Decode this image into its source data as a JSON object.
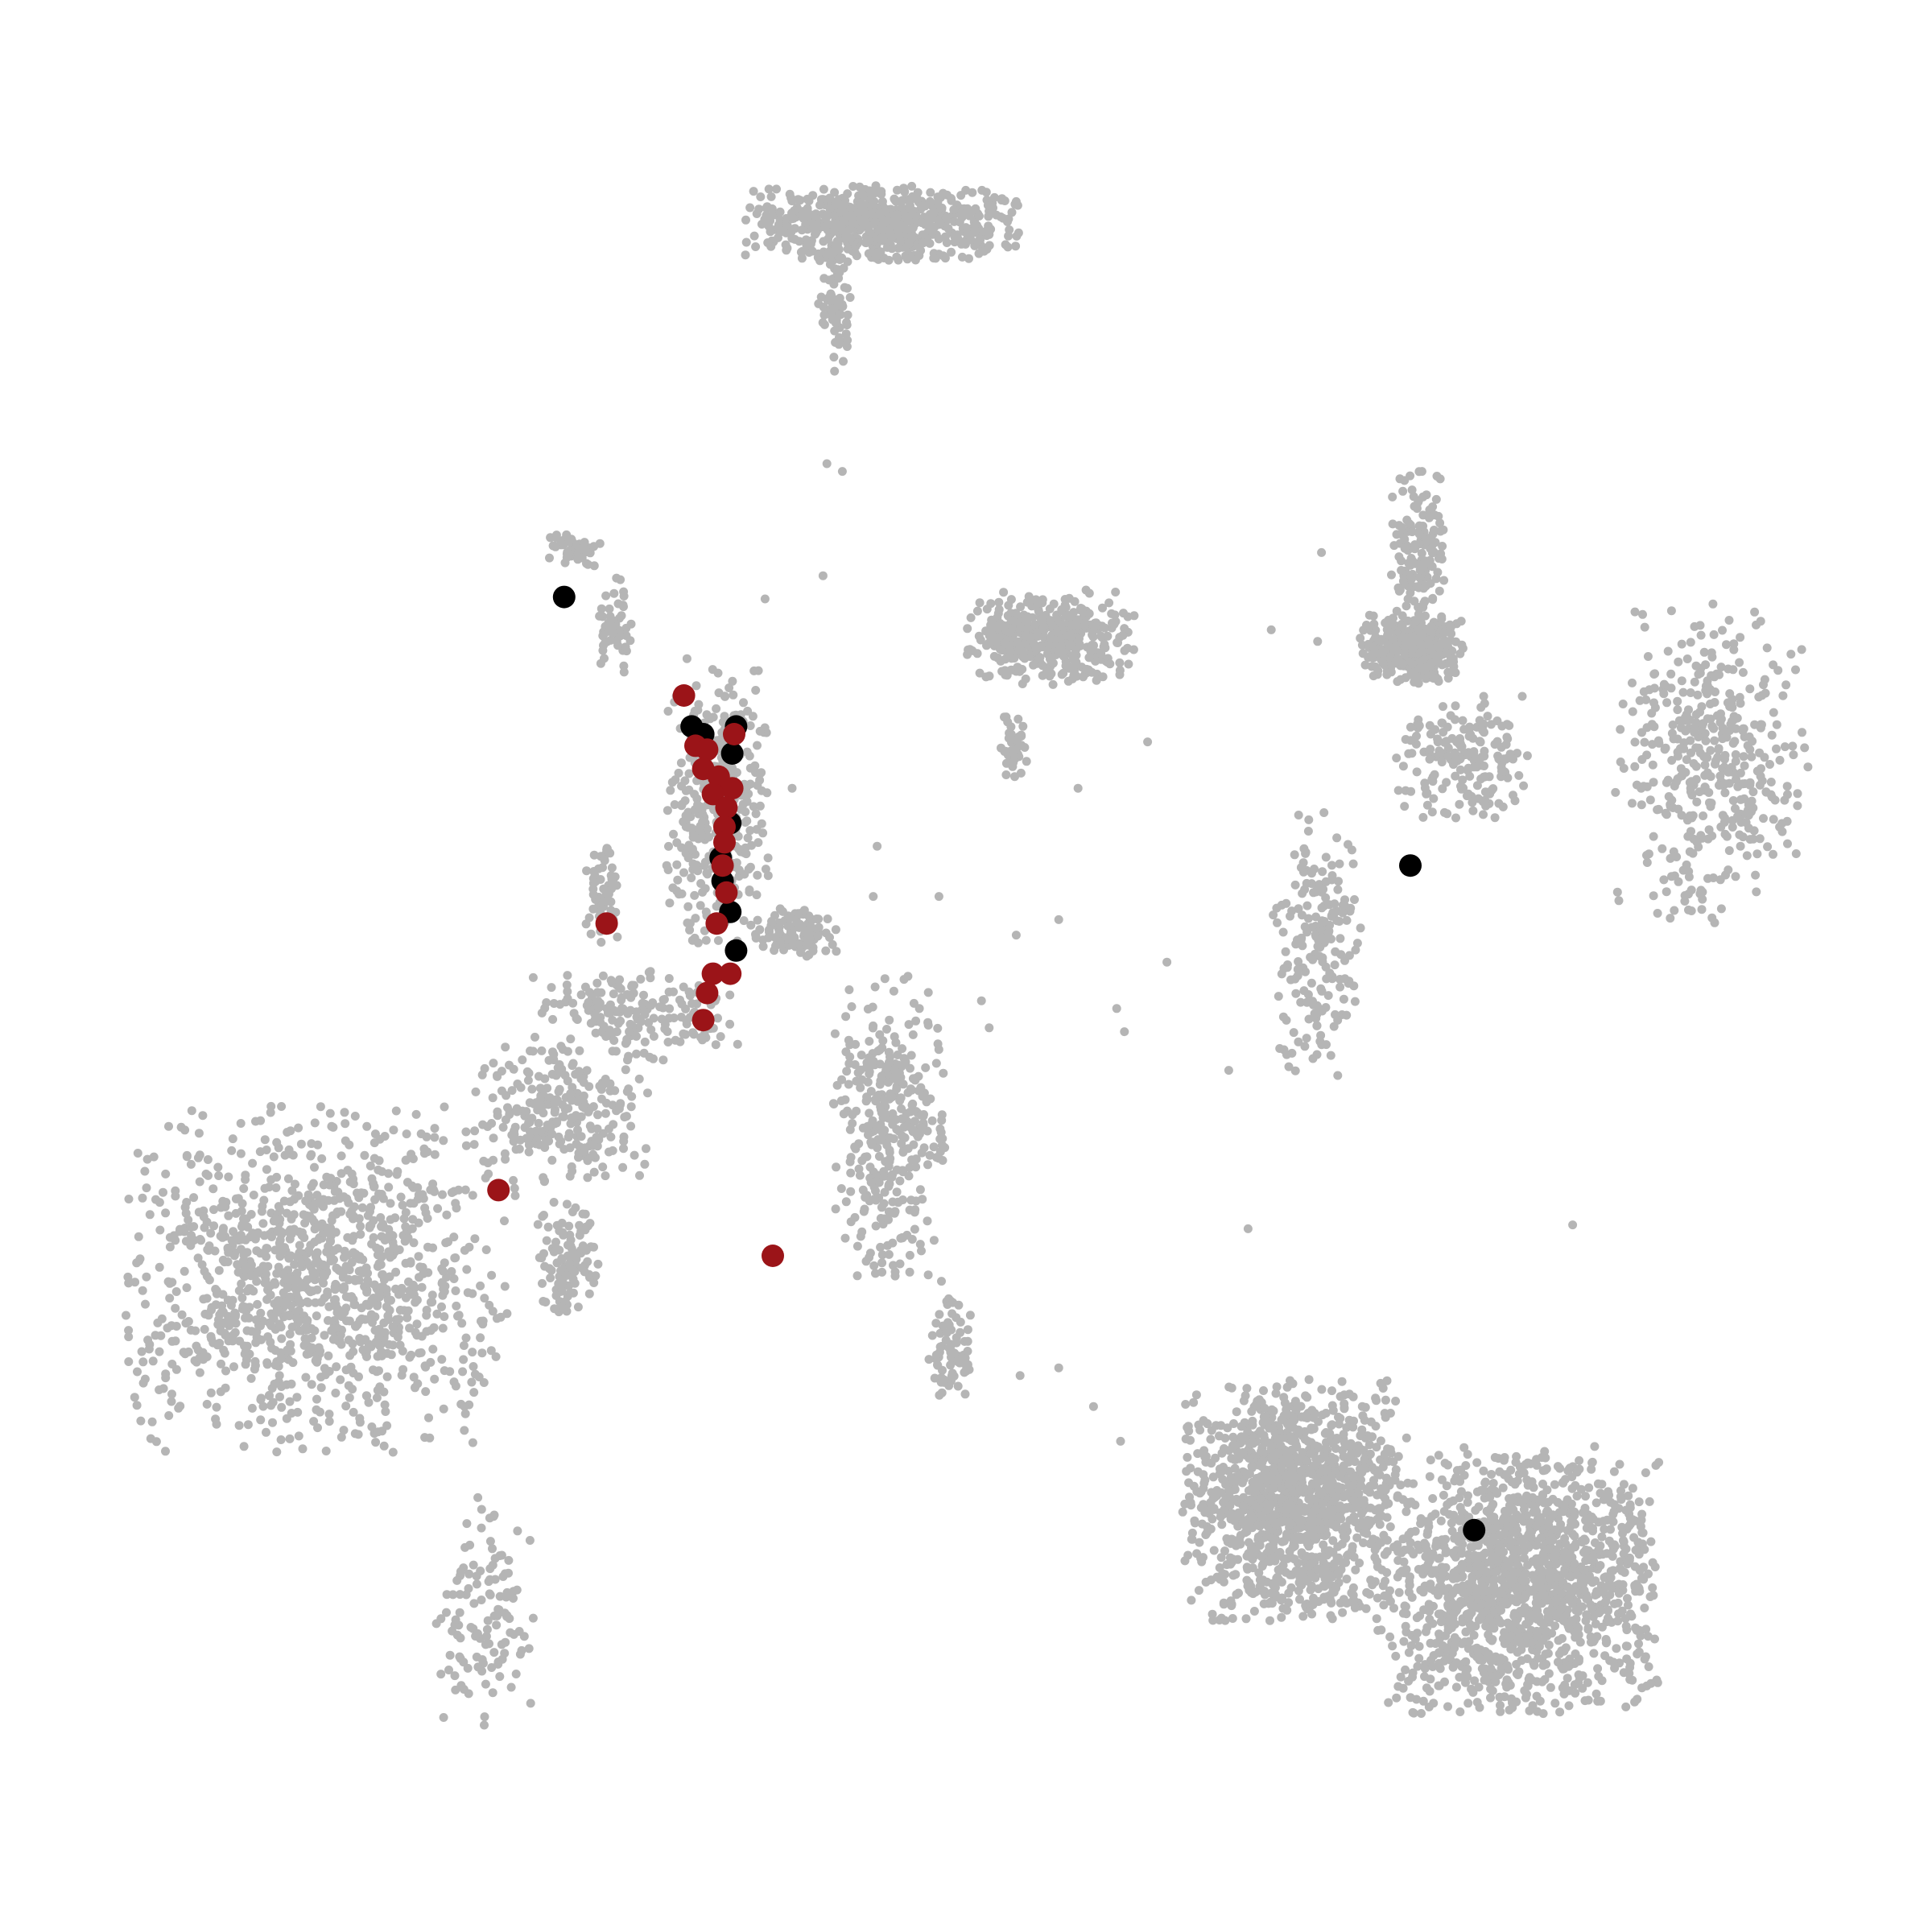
{
  "chart_data": {
    "type": "scatter",
    "title": "",
    "xlabel": "",
    "ylabel": "",
    "grid": false,
    "axes_visible": false,
    "xlim": [
      0,
      100
    ],
    "ylim": [
      0,
      100
    ],
    "colors": {
      "background": "#b5b5b5",
      "highlight_black": "#000000",
      "highlight_red": "#9b1418"
    },
    "background_clusters": [
      {
        "cx": 45.7,
        "cy": 88.4,
        "rx": 6.8,
        "ry": 1.9,
        "n": 650
      },
      {
        "cx": 43.2,
        "cy": 84.2,
        "rx": 0.8,
        "ry": 3.4,
        "n": 70
      },
      {
        "cx": 29.8,
        "cy": 71.6,
        "rx": 1.4,
        "ry": 0.9,
        "n": 60
      },
      {
        "cx": 31.8,
        "cy": 67.6,
        "rx": 0.9,
        "ry": 2.4,
        "n": 50
      },
      {
        "cx": 37.2,
        "cy": 58.4,
        "rx": 2.6,
        "ry": 7.2,
        "n": 420
      },
      {
        "cx": 41.2,
        "cy": 51.8,
        "rx": 2.0,
        "ry": 1.3,
        "n": 100
      },
      {
        "cx": 31.2,
        "cy": 53.8,
        "rx": 0.9,
        "ry": 2.7,
        "n": 60
      },
      {
        "cx": 33.0,
        "cy": 47.4,
        "rx": 5.2,
        "ry": 2.3,
        "n": 180
      },
      {
        "cx": 29.0,
        "cy": 42.4,
        "rx": 4.4,
        "ry": 3.6,
        "n": 250
      },
      {
        "cx": 16.6,
        "cy": 33.8,
        "rx": 9.6,
        "ry": 8.6,
        "n": 1200
      },
      {
        "cx": 29.4,
        "cy": 34.6,
        "rx": 1.5,
        "ry": 3.2,
        "n": 110
      },
      {
        "cx": 25.2,
        "cy": 16.4,
        "rx": 2.6,
        "ry": 6.2,
        "n": 120
      },
      {
        "cx": 46.0,
        "cy": 41.6,
        "rx": 2.8,
        "ry": 7.6,
        "n": 360
      },
      {
        "cx": 49.2,
        "cy": 30.4,
        "rx": 1.1,
        "ry": 3.2,
        "n": 80
      },
      {
        "cx": 54.4,
        "cy": 67.0,
        "rx": 4.2,
        "ry": 2.4,
        "n": 420
      },
      {
        "cx": 52.6,
        "cy": 61.4,
        "rx": 0.8,
        "ry": 2.0,
        "n": 40
      },
      {
        "cx": 73.0,
        "cy": 66.4,
        "rx": 2.6,
        "ry": 1.7,
        "n": 360
      },
      {
        "cx": 73.4,
        "cy": 71.2,
        "rx": 1.4,
        "ry": 4.2,
        "n": 160
      },
      {
        "cx": 75.8,
        "cy": 60.6,
        "rx": 3.4,
        "ry": 3.2,
        "n": 180
      },
      {
        "cx": 68.2,
        "cy": 51.2,
        "rx": 2.2,
        "ry": 6.6,
        "n": 190
      },
      {
        "cx": 88.6,
        "cy": 60.6,
        "rx": 4.8,
        "ry": 8.0,
        "n": 420
      },
      {
        "cx": 67.0,
        "cy": 22.4,
        "rx": 5.6,
        "ry": 6.0,
        "n": 1300
      },
      {
        "cx": 78.6,
        "cy": 18.2,
        "rx": 7.0,
        "ry": 6.6,
        "n": 1500
      }
    ],
    "background_sparse_points": [
      [
        42.8,
        76.0
      ],
      [
        43.6,
        75.6
      ],
      [
        42.6,
        70.2
      ],
      [
        45.4,
        56.2
      ],
      [
        54.8,
        52.4
      ],
      [
        48.6,
        53.6
      ],
      [
        60.4,
        50.2
      ],
      [
        57.8,
        47.8
      ],
      [
        52.6,
        51.6
      ],
      [
        50.8,
        48.2
      ],
      [
        51.2,
        46.8
      ],
      [
        27.6,
        49.4
      ],
      [
        55.8,
        59.2
      ],
      [
        59.4,
        61.6
      ],
      [
        65.8,
        67.4
      ],
      [
        68.2,
        66.8
      ],
      [
        68.4,
        71.4
      ],
      [
        58.2,
        46.6
      ],
      [
        63.6,
        44.6
      ],
      [
        81.4,
        36.6
      ],
      [
        52.8,
        28.8
      ],
      [
        54.8,
        29.2
      ],
      [
        56.6,
        27.2
      ],
      [
        58.0,
        25.4
      ],
      [
        64.6,
        36.4
      ],
      [
        45.2,
        53.6
      ],
      [
        41.0,
        59.2
      ],
      [
        39.6,
        69.0
      ]
    ],
    "highlighted_points": [
      {
        "group": "black",
        "x": 29.2,
        "y": 69.1
      },
      {
        "group": "black",
        "x": 35.8,
        "y": 62.4
      },
      {
        "group": "black",
        "x": 36.4,
        "y": 62.0
      },
      {
        "group": "black",
        "x": 38.1,
        "y": 62.4
      },
      {
        "group": "black",
        "x": 37.9,
        "y": 61.0
      },
      {
        "group": "black",
        "x": 37.8,
        "y": 57.4
      },
      {
        "group": "black",
        "x": 37.3,
        "y": 55.6
      },
      {
        "group": "black",
        "x": 37.4,
        "y": 54.4
      },
      {
        "group": "black",
        "x": 37.8,
        "y": 52.8
      },
      {
        "group": "black",
        "x": 38.1,
        "y": 50.8
      },
      {
        "group": "black",
        "x": 73.0,
        "y": 55.2
      },
      {
        "group": "black",
        "x": 76.3,
        "y": 20.8
      },
      {
        "group": "red",
        "x": 35.4,
        "y": 64.0
      },
      {
        "group": "red",
        "x": 36.0,
        "y": 61.4
      },
      {
        "group": "red",
        "x": 36.6,
        "y": 61.2
      },
      {
        "group": "red",
        "x": 38.0,
        "y": 62.0
      },
      {
        "group": "red",
        "x": 36.4,
        "y": 60.2
      },
      {
        "group": "red",
        "x": 37.2,
        "y": 59.8
      },
      {
        "group": "red",
        "x": 37.9,
        "y": 59.2
      },
      {
        "group": "red",
        "x": 36.9,
        "y": 58.9
      },
      {
        "group": "red",
        "x": 37.6,
        "y": 58.2
      },
      {
        "group": "red",
        "x": 37.5,
        "y": 57.2
      },
      {
        "group": "red",
        "x": 37.5,
        "y": 56.4
      },
      {
        "group": "red",
        "x": 37.4,
        "y": 55.2
      },
      {
        "group": "red",
        "x": 37.6,
        "y": 53.8
      },
      {
        "group": "red",
        "x": 31.4,
        "y": 52.2
      },
      {
        "group": "red",
        "x": 37.1,
        "y": 52.2
      },
      {
        "group": "red",
        "x": 36.9,
        "y": 49.6
      },
      {
        "group": "red",
        "x": 37.8,
        "y": 49.6
      },
      {
        "group": "red",
        "x": 36.6,
        "y": 48.6
      },
      {
        "group": "red",
        "x": 36.4,
        "y": 47.2
      },
      {
        "group": "red",
        "x": 25.8,
        "y": 38.4
      },
      {
        "group": "red",
        "x": 40.0,
        "y": 35.0
      }
    ]
  }
}
